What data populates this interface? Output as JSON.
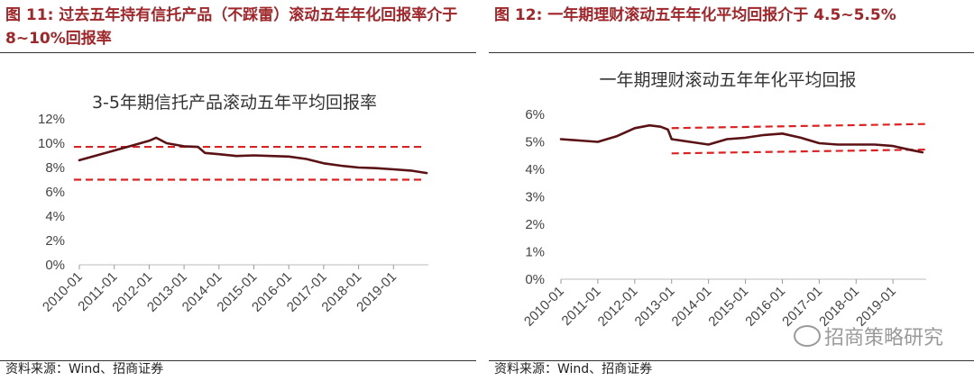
{
  "figures": [
    {
      "label": "图 11:",
      "title": "过去五年持有信托产品（不踩雷）滚动五年年化回报率介于 8~10%回报率",
      "source": "资料来源：Wind、招商证券"
    },
    {
      "label": "图 12:",
      "title": "一年期理财滚动五年年化平均回报介于 4.5~5.5%",
      "source": "资料来源：Wind、招商证券"
    }
  ],
  "watermark": "招商策略研究",
  "chart_data": [
    {
      "type": "line",
      "title": "3-5年期信托产品滚动五年平均回报率",
      "categories": [
        "2010-01",
        "2011-01",
        "2012-01",
        "2013-01",
        "2014-01",
        "2015-01",
        "2016-01",
        "2017-01",
        "2018-01",
        "2019-01"
      ],
      "x": [
        2010.0,
        2010.5,
        2011.0,
        2011.5,
        2012.0,
        2012.2,
        2012.5,
        2013.0,
        2013.4,
        2013.6,
        2014.0,
        2014.5,
        2015.0,
        2015.5,
        2016.0,
        2016.5,
        2017.0,
        2017.5,
        2018.0,
        2018.5,
        2019.0,
        2019.5,
        2019.95
      ],
      "series": [
        {
          "values": [
            8.6,
            9.0,
            9.4,
            9.8,
            10.2,
            10.45,
            10.0,
            9.75,
            9.7,
            9.2,
            9.1,
            8.95,
            9.0,
            8.95,
            8.9,
            8.7,
            8.35,
            8.15,
            8.0,
            7.95,
            7.85,
            7.75,
            7.55
          ],
          "color": "#5a1215"
        }
      ],
      "reference_lines": [
        9.7,
        7.0
      ],
      "reference_color": "#e02020",
      "xlim": [
        2010.0,
        2020.0
      ],
      "ylim": [
        0,
        12
      ],
      "yticks": [
        "0%",
        "2%",
        "4%",
        "6%",
        "8%",
        "10%",
        "12%"
      ],
      "grid": false
    },
    {
      "type": "line",
      "title": "一年期理财滚动五年年化平均回报",
      "categories": [
        "2010-01",
        "2011-01",
        "2012-01",
        "2013-01",
        "2014-01",
        "2015-01",
        "2016-01",
        "2017-01",
        "2018-01",
        "2019-01"
      ],
      "x": [
        2010.0,
        2010.5,
        2011.0,
        2011.5,
        2012.0,
        2012.4,
        2012.7,
        2012.9,
        2013.0,
        2013.5,
        2014.0,
        2014.5,
        2015.0,
        2015.5,
        2016.0,
        2016.5,
        2017.0,
        2017.5,
        2018.0,
        2018.5,
        2019.0,
        2019.5,
        2019.8
      ],
      "series": [
        {
          "values": [
            5.1,
            5.05,
            5.0,
            5.2,
            5.5,
            5.6,
            5.55,
            5.45,
            5.1,
            5.0,
            4.9,
            5.1,
            5.15,
            5.25,
            5.3,
            5.15,
            4.95,
            4.9,
            4.9,
            4.9,
            4.85,
            4.7,
            4.62
          ],
          "color": "#5a1215"
        }
      ],
      "reference_segments": [
        {
          "x": [
            2013.0,
            2019.9
          ],
          "y": [
            5.5,
            5.65
          ]
        },
        {
          "x": [
            2013.0,
            2019.9
          ],
          "y": [
            4.58,
            4.72
          ]
        }
      ],
      "reference_color": "#e02020",
      "xlim": [
        2010.0,
        2019.9
      ],
      "ylim": [
        0,
        6
      ],
      "yticks": [
        "0%",
        "1%",
        "2%",
        "3%",
        "4%",
        "5%",
        "6%"
      ],
      "grid": false
    }
  ]
}
